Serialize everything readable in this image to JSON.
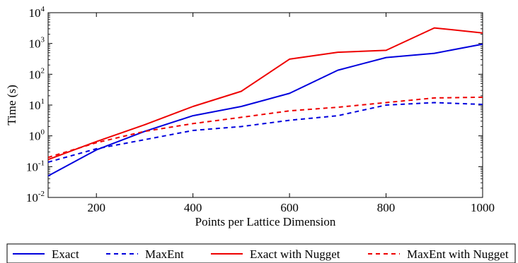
{
  "chart_data": {
    "type": "line",
    "xlabel": "Points per Lattice Dimension",
    "ylabel": "Time (s)",
    "y_scale": "log",
    "xlim": [
      100,
      1000
    ],
    "ylim": [
      0.01,
      10000
    ],
    "grid": false,
    "legend_position": "bottom",
    "x_ticks": [
      200,
      400,
      600,
      800,
      1000
    ],
    "x_tick_labels": [
      "200",
      "400",
      "600",
      "800",
      "1000"
    ],
    "y_ticks": [
      0.01,
      0.1,
      1,
      10,
      100,
      1000,
      10000
    ],
    "y_tick_labels": [
      {
        "base": "10",
        "exp": "-2"
      },
      {
        "base": "10",
        "exp": "-1"
      },
      {
        "base": "10",
        "exp": "0"
      },
      {
        "base": "10",
        "exp": "1"
      },
      {
        "base": "10",
        "exp": "2"
      },
      {
        "base": "10",
        "exp": "3"
      },
      {
        "base": "10",
        "exp": "4"
      }
    ],
    "x": [
      100,
      200,
      300,
      400,
      500,
      600,
      700,
      800,
      900,
      1000
    ],
    "series": [
      {
        "name": "Exact",
        "color": "#0000dd",
        "dash": "solid",
        "values": [
          0.05,
          0.35,
          1.4,
          4.5,
          9,
          24,
          135,
          350,
          480,
          950
        ]
      },
      {
        "name": "MaxEnt",
        "color": "#0000dd",
        "dash": "dashed",
        "values": [
          0.14,
          0.38,
          0.75,
          1.5,
          2.0,
          3.2,
          4.5,
          10,
          12,
          10.5
        ]
      },
      {
        "name": "Exact with Nugget",
        "color": "#ee0000",
        "dash": "solid",
        "values": [
          0.17,
          0.65,
          2.3,
          9,
          28,
          310,
          520,
          600,
          3200,
          2200
        ]
      },
      {
        "name": "MaxEnt with Nugget",
        "color": "#ee0000",
        "dash": "dashed",
        "values": [
          0.2,
          0.6,
          1.4,
          2.5,
          4,
          6.5,
          8.5,
          12,
          17,
          18
        ]
      }
    ]
  }
}
